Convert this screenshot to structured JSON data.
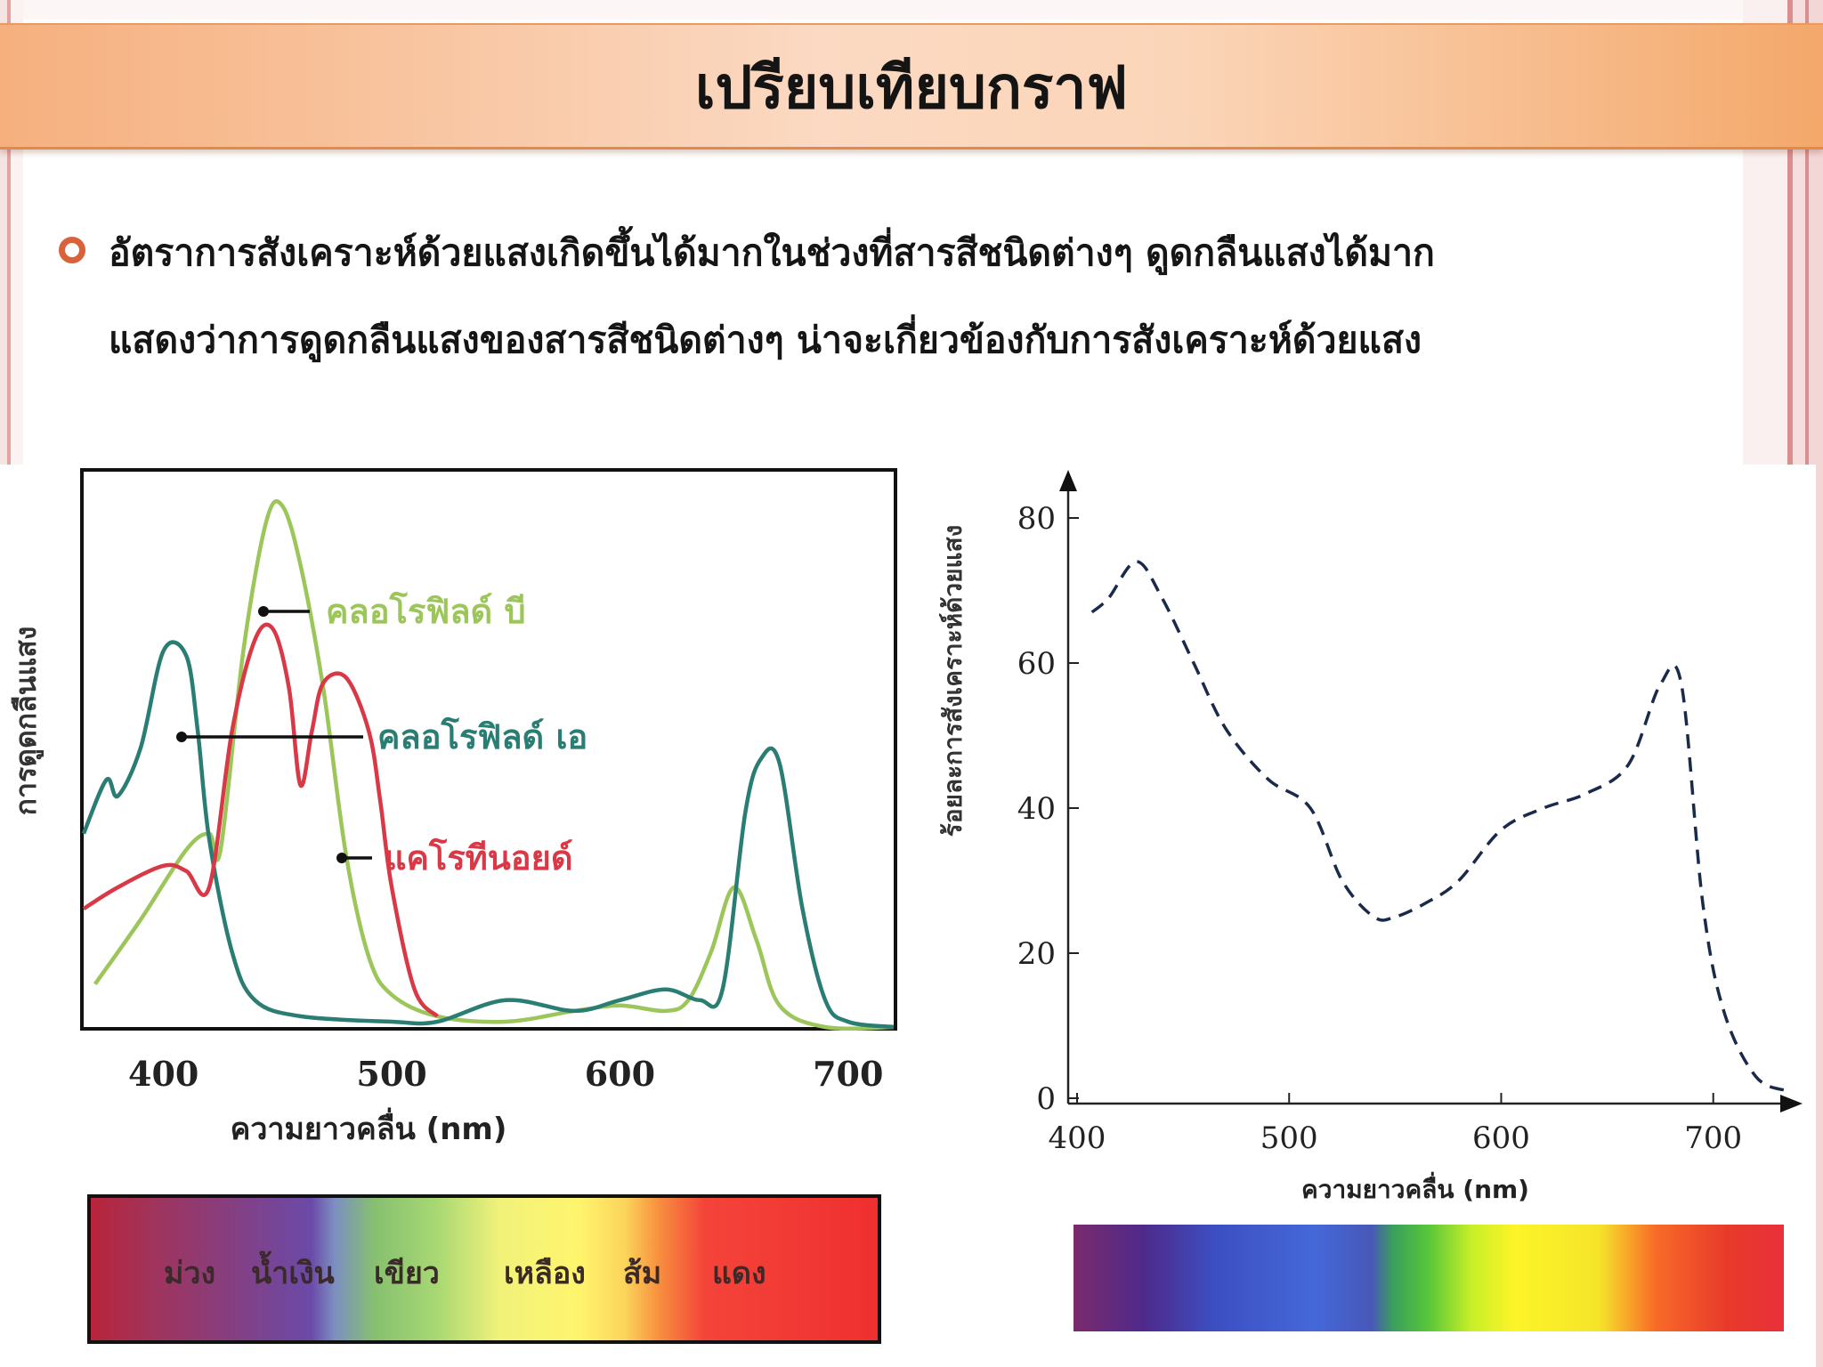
{
  "slide": {
    "title": "เปรียบเทียบกราฟ",
    "body_lines": [
      "อัตราการสังเคราะห์ด้วยแสงเกิดขึ้นได้มากในช่วงที่สารสีชนิดต่างๆ ดูดกลืนแสงได้มาก",
      "แสดงว่าการดูดกลืนแสงของสารสีชนิดต่างๆ น่าจะเกี่ยวข้องกับการสังเคราะห์ด้วยแสง"
    ],
    "colors": {
      "title_bar": "#f7b487",
      "bullet": "#d9623b"
    }
  },
  "chart_data": [
    {
      "type": "line",
      "title": "",
      "xlabel": "ความยาวคลื่น (nm)",
      "ylabel": "การดูดกลืนแสง",
      "xlim": [
        365,
        720
      ],
      "ylim": [
        0,
        1
      ],
      "x_ticks": [
        400,
        500,
        600,
        700
      ],
      "grid": false,
      "legend": "inline labels",
      "series": [
        {
          "name": "คลอโรฟิลด์ บี",
          "color": "#9cc65a",
          "x": [
            370,
            390,
            410,
            420,
            425,
            435,
            445,
            452,
            460,
            470,
            480,
            490,
            500,
            520,
            550,
            580,
            600,
            620,
            630,
            640,
            650,
            660,
            670,
            690,
            720
          ],
          "y": [
            0.08,
            0.2,
            0.33,
            0.36,
            0.33,
            0.7,
            0.94,
            0.97,
            0.86,
            0.63,
            0.32,
            0.13,
            0.06,
            0.02,
            0.01,
            0.03,
            0.04,
            0.03,
            0.05,
            0.14,
            0.26,
            0.16,
            0.04,
            0.0,
            0.0
          ]
        },
        {
          "name": "คลอโรฟิลด์ เอ",
          "color": "#2a7d72",
          "x": [
            365,
            375,
            380,
            390,
            400,
            410,
            415,
            420,
            430,
            440,
            460,
            500,
            520,
            550,
            580,
            600,
            620,
            635,
            645,
            655,
            662,
            670,
            680,
            690,
            700,
            720
          ],
          "y": [
            0.36,
            0.46,
            0.43,
            0.52,
            0.7,
            0.69,
            0.55,
            0.35,
            0.14,
            0.05,
            0.02,
            0.01,
            0.01,
            0.05,
            0.03,
            0.05,
            0.07,
            0.05,
            0.07,
            0.4,
            0.5,
            0.49,
            0.22,
            0.05,
            0.01,
            0.0
          ]
        },
        {
          "name": "แคโรทีนอยด์",
          "color": "#d93846",
          "x": [
            365,
            380,
            400,
            410,
            420,
            430,
            440,
            448,
            455,
            460,
            465,
            470,
            480,
            490,
            495,
            500,
            510,
            520
          ],
          "y": [
            0.22,
            0.26,
            0.3,
            0.29,
            0.26,
            0.55,
            0.72,
            0.74,
            0.63,
            0.45,
            0.55,
            0.64,
            0.65,
            0.55,
            0.42,
            0.26,
            0.07,
            0.02
          ]
        }
      ],
      "spectrum_labels": [
        "ม่วง",
        "น้ำเงิน",
        "เขียว",
        "เหลือง",
        "ส้ม",
        "แดง"
      ]
    },
    {
      "type": "line",
      "title": "",
      "xlabel": "ความยาวคลื่น (nm)",
      "ylabel": "ร้อยละการสังเคราะห์ด้วยแสง",
      "xlim": [
        400,
        740
      ],
      "ylim": [
        0,
        80
      ],
      "x_ticks": [
        400,
        500,
        600,
        700
      ],
      "y_ticks": [
        0,
        20,
        40,
        60,
        80
      ],
      "grid": false,
      "series": [
        {
          "color": "#1a2a4a",
          "style": "dashed",
          "x": [
            407,
            415,
            428,
            440,
            455,
            470,
            490,
            510,
            525,
            540,
            550,
            565,
            580,
            600,
            620,
            640,
            660,
            675,
            685,
            695,
            705,
            720,
            735
          ],
          "y": [
            67,
            69,
            74,
            69,
            60,
            51,
            44,
            40,
            30,
            25,
            25,
            27,
            30,
            37,
            40,
            42,
            46,
            57,
            57,
            27,
            12,
            3,
            1
          ]
        }
      ]
    }
  ]
}
